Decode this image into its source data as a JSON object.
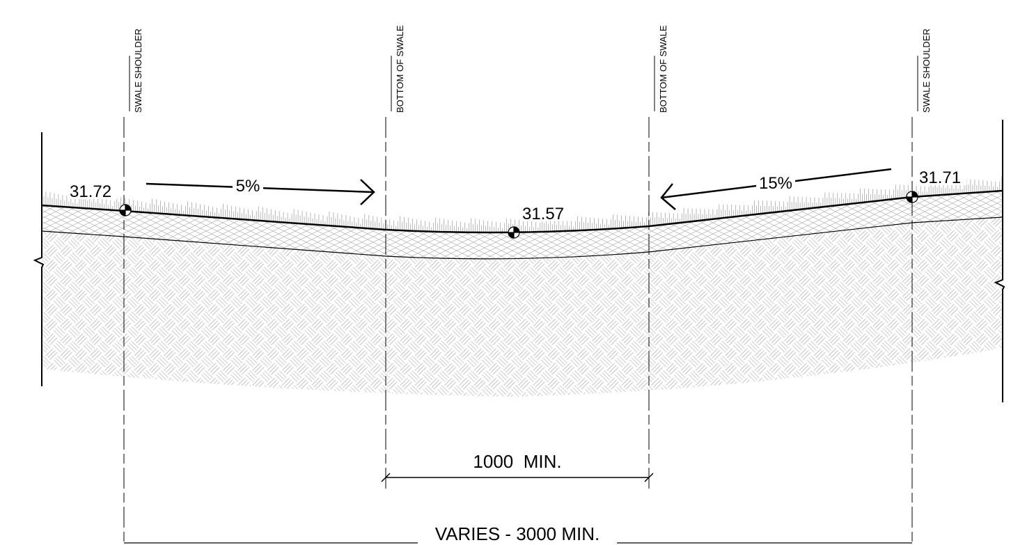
{
  "reference_lines": [
    "SWALE SHOULDER",
    "BOTTOM OF SWALE",
    "BOTTOM OF SWALE",
    "SWALE SHOULDER"
  ],
  "elevations": [
    "31.72",
    "31.57",
    "31.71"
  ],
  "slopes": [
    "5%",
    "15%"
  ],
  "dimensions": [
    "1000  MIN.",
    "VARIES - 3000 MIN."
  ]
}
